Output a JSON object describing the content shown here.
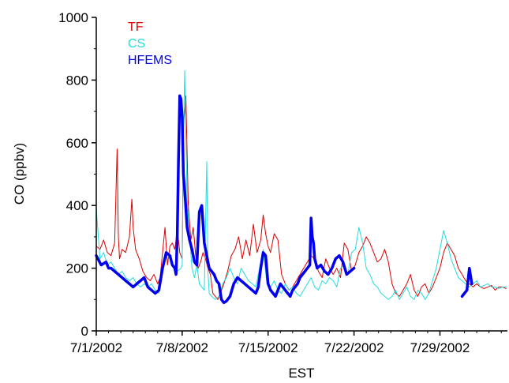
{
  "chart_data": {
    "type": "line",
    "title": "",
    "xlabel": "EST",
    "ylabel": "CO (ppbv)",
    "xlim": [
      0,
      33.5
    ],
    "ylim": [
      0,
      1000
    ],
    "x_unit": "days from 7/1/2002 (EST)",
    "x_ticks": [
      {
        "value": 0,
        "label": "7/1/2002"
      },
      {
        "value": 7,
        "label": "7/8/2002"
      },
      {
        "value": 14,
        "label": "7/15/2002"
      },
      {
        "value": 21,
        "label": "7/22/2002"
      },
      {
        "value": 28,
        "label": "7/29/2002"
      }
    ],
    "y_ticks": [
      {
        "value": 0,
        "label": "0"
      },
      {
        "value": 200,
        "label": "200"
      },
      {
        "value": 400,
        "label": "400"
      },
      {
        "value": 600,
        "label": "600"
      },
      {
        "value": 800,
        "label": "800"
      },
      {
        "value": 1000,
        "label": "1000"
      }
    ],
    "legend_position": "top-left",
    "grid": false,
    "series": [
      {
        "name": "TF",
        "color": "#dd0000",
        "stroke": 1,
        "x": [
          0.0,
          0.3,
          0.6,
          0.9,
          1.2,
          1.5,
          1.7,
          1.8,
          1.9,
          2.1,
          2.4,
          2.7,
          2.9,
          3.0,
          3.2,
          3.5,
          3.8,
          4.1,
          4.4,
          4.7,
          5.0,
          5.2,
          5.4,
          5.6,
          5.8,
          6.0,
          6.2,
          6.4,
          6.6,
          6.7,
          6.8,
          6.9,
          7.0,
          7.1,
          7.3,
          7.5,
          7.7,
          7.9,
          8.1,
          8.3,
          8.5,
          8.7,
          8.9,
          9.1,
          9.3,
          9.5,
          9.7,
          9.9,
          10.1,
          10.4,
          10.7,
          11.0,
          11.3,
          11.6,
          11.9,
          12.2,
          12.5,
          12.8,
          13.1,
          13.4,
          13.6,
          13.8,
          14.0,
          14.2,
          14.5,
          14.8,
          15.1,
          15.4,
          15.7,
          16.0,
          16.3,
          16.6,
          16.9,
          17.2,
          17.5,
          17.8,
          18.1,
          18.4,
          18.7,
          19.0,
          19.3,
          19.6,
          19.9,
          20.2,
          20.5,
          20.8,
          21.1,
          21.4,
          21.7,
          22.0,
          22.3,
          22.6,
          22.9,
          23.2,
          23.5,
          23.8,
          24.1,
          24.4,
          24.7,
          25.0,
          25.3,
          25.6,
          25.9,
          26.2,
          26.5,
          26.8,
          27.1,
          27.4,
          27.7,
          28.0,
          28.3,
          28.6,
          28.9,
          29.2,
          29.5,
          29.8,
          30.1,
          30.4,
          30.7,
          31.0,
          31.3,
          31.6,
          31.9,
          32.2,
          32.5,
          32.8,
          33.1,
          33.4
        ],
        "y": [
          270,
          260,
          290,
          250,
          240,
          280,
          580,
          300,
          230,
          260,
          250,
          300,
          420,
          330,
          260,
          230,
          190,
          170,
          160,
          180,
          150,
          170,
          250,
          330,
          210,
          270,
          280,
          260,
          320,
          290,
          250,
          240,
          230,
          650,
          750,
          400,
          290,
          330,
          240,
          200,
          220,
          250,
          230,
          200,
          180,
          120,
          110,
          100,
          120,
          150,
          190,
          240,
          260,
          300,
          230,
          290,
          240,
          340,
          250,
          290,
          370,
          310,
          270,
          250,
          310,
          290,
          180,
          150,
          130,
          140,
          160,
          180,
          200,
          220,
          240,
          230,
          190,
          170,
          230,
          200,
          180,
          200,
          170,
          280,
          260,
          190,
          210,
          250,
          270,
          300,
          280,
          250,
          220,
          230,
          260,
          220,
          150,
          120,
          110,
          130,
          150,
          180,
          130,
          110,
          140,
          150,
          120,
          140,
          170,
          200,
          250,
          280,
          260,
          240,
          200,
          180,
          160,
          150,
          140,
          150,
          140,
          135,
          140,
          145,
          130,
          140,
          140,
          135
        ]
      },
      {
        "name": "CS",
        "color": "#22dddd",
        "stroke": 1,
        "x": [
          0.0,
          0.3,
          0.6,
          0.9,
          1.2,
          1.5,
          1.8,
          2.1,
          2.4,
          2.7,
          3.0,
          3.3,
          3.6,
          3.9,
          4.2,
          4.5,
          4.8,
          5.1,
          5.4,
          5.7,
          6.0,
          6.3,
          6.6,
          6.9,
          7.0,
          7.1,
          7.2,
          7.4,
          7.6,
          7.8,
          8.0,
          8.2,
          8.4,
          8.6,
          8.8,
          9.0,
          9.1,
          9.2,
          9.4,
          9.7,
          10.0,
          10.3,
          10.6,
          10.9,
          11.2,
          11.5,
          11.8,
          12.1,
          12.4,
          12.7,
          13.0,
          13.3,
          13.6,
          13.9,
          14.2,
          14.5,
          14.8,
          15.1,
          15.4,
          15.7,
          16.0,
          16.3,
          16.6,
          16.9,
          17.2,
          17.5,
          17.8,
          18.1,
          18.4,
          18.7,
          19.0,
          19.3,
          19.6,
          19.9,
          20.2,
          20.5,
          20.8,
          21.1,
          21.4,
          21.7,
          22.0,
          22.3,
          22.6,
          22.9,
          23.2,
          23.5,
          23.8,
          24.1,
          24.4,
          24.7,
          25.0,
          25.3,
          25.6,
          25.9,
          26.2,
          26.5,
          26.8,
          27.1,
          27.4,
          27.7,
          28.0,
          28.3,
          28.6,
          28.9,
          29.2,
          29.5,
          29.8,
          30.1,
          30.4,
          30.7,
          31.0,
          31.3,
          31.6,
          31.9,
          32.2,
          32.5,
          32.8,
          33.1,
          33.4
        ],
        "y": [
          390,
          230,
          250,
          210,
          220,
          200,
          180,
          190,
          170,
          160,
          170,
          150,
          140,
          150,
          140,
          150,
          130,
          120,
          200,
          250,
          230,
          210,
          190,
          200,
          210,
          600,
          830,
          420,
          300,
          200,
          170,
          210,
          150,
          140,
          130,
          540,
          190,
          120,
          110,
          100,
          110,
          150,
          170,
          200,
          170,
          150,
          200,
          180,
          160,
          150,
          140,
          200,
          260,
          150,
          140,
          160,
          130,
          120,
          150,
          130,
          140,
          120,
          110,
          130,
          150,
          170,
          140,
          130,
          160,
          150,
          170,
          160,
          140,
          200,
          210,
          180,
          250,
          260,
          330,
          280,
          200,
          180,
          150,
          140,
          120,
          110,
          100,
          110,
          130,
          100,
          120,
          140,
          110,
          100,
          130,
          120,
          100,
          120,
          160,
          200,
          260,
          320,
          280,
          230,
          200,
          170,
          160,
          150,
          140,
          150,
          160,
          140,
          145,
          150,
          140,
          140,
          135,
          140,
          140
        ]
      },
      {
        "name": "HFEMS",
        "color": "#0000ee",
        "stroke": 3.5,
        "x": [
          0.0,
          0.4,
          0.8,
          1.0,
          1.2,
          1.5,
          1.8,
          2.1,
          2.4,
          2.7,
          3.0,
          3.3,
          3.6,
          3.9,
          4.2,
          4.5,
          4.8,
          5.1,
          5.4,
          5.7,
          6.0,
          6.2,
          6.4,
          6.5,
          6.6,
          6.7,
          6.8,
          6.9,
          7.0,
          7.1,
          7.2,
          7.4,
          7.6,
          7.8,
          8.0,
          8.2,
          8.4,
          8.6,
          8.8,
          9.0,
          9.2,
          9.4,
          9.6,
          9.8,
          10.0,
          10.2,
          10.4,
          10.6,
          10.9,
          11.2,
          11.5,
          11.8,
          12.1,
          12.4,
          12.7,
          13.0,
          13.2,
          13.4,
          13.6,
          13.8,
          14.0,
          14.2,
          14.4,
          14.6,
          14.8,
          15.0,
          15.2,
          15.4,
          15.6,
          15.8,
          16.0,
          16.2,
          16.4,
          16.6,
          16.8,
          17.0,
          17.2,
          17.4,
          17.5,
          17.6,
          17.7,
          17.8,
          18.0,
          18.3,
          18.6,
          18.9,
          19.2,
          19.5,
          19.8,
          20.1,
          20.4,
          20.7,
          21.0,
          29.8,
          30.0,
          30.2,
          30.4,
          30.6
        ],
        "y": [
          240,
          210,
          220,
          200,
          200,
          190,
          180,
          170,
          160,
          150,
          140,
          150,
          160,
          170,
          140,
          130,
          120,
          130,
          200,
          250,
          240,
          210,
          200,
          180,
          300,
          550,
          750,
          740,
          680,
          500,
          450,
          330,
          290,
          260,
          220,
          210,
          380,
          400,
          280,
          240,
          200,
          190,
          180,
          160,
          150,
          100,
          90,
          95,
          110,
          150,
          170,
          160,
          150,
          140,
          130,
          120,
          140,
          200,
          250,
          240,
          150,
          130,
          120,
          110,
          130,
          150,
          140,
          130,
          120,
          110,
          130,
          140,
          150,
          170,
          180,
          190,
          200,
          210,
          360,
          300,
          280,
          230,
          200,
          210,
          190,
          180,
          200,
          230,
          240,
          220,
          180,
          190,
          200,
          110,
          120,
          130,
          200,
          150
        ]
      }
    ]
  }
}
